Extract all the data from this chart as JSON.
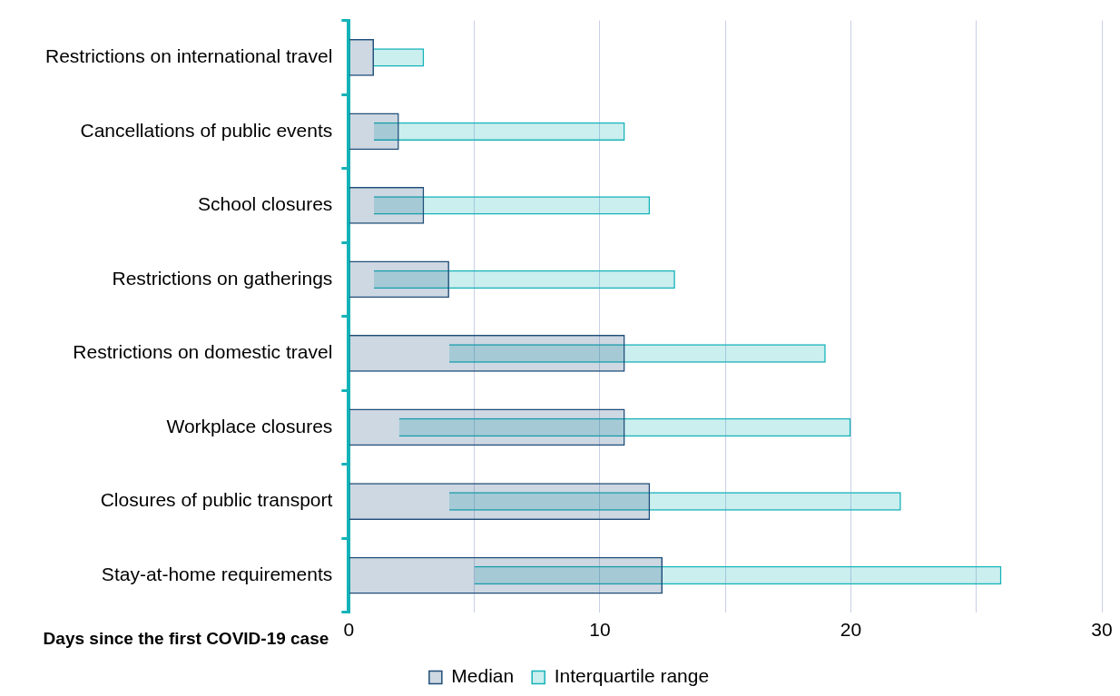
{
  "chart_data": {
    "type": "bar",
    "orientation": "horizontal",
    "xlabel": "Days since the first COVID-19 case",
    "categories": [
      "Restrictions on international travel",
      "Cancellations of public events",
      "School closures",
      "Restrictions on gatherings",
      "Restrictions on domestic travel",
      "Workplace closures",
      "Closures of public transport",
      "Stay-at-home requirements"
    ],
    "series": [
      {
        "name": "Median",
        "color": "#1f4e79",
        "values": [
          1,
          2,
          3,
          4,
          11,
          11,
          12,
          12.5
        ]
      },
      {
        "name": "Interquartile range",
        "color": "#14b3b8",
        "base": [
          1,
          1,
          1,
          1,
          4,
          2,
          4,
          5
        ],
        "values": [
          2,
          10,
          11,
          12,
          15,
          18,
          18,
          21
        ]
      }
    ],
    "xlim": [
      0,
      30
    ],
    "xticks": [
      0,
      {
        "value": 5,
        "label": null
      },
      10,
      {
        "value": 15,
        "label": null
      },
      20,
      {
        "value": 25,
        "label": null
      },
      30
    ],
    "grid": "x",
    "legend": "bottom"
  }
}
